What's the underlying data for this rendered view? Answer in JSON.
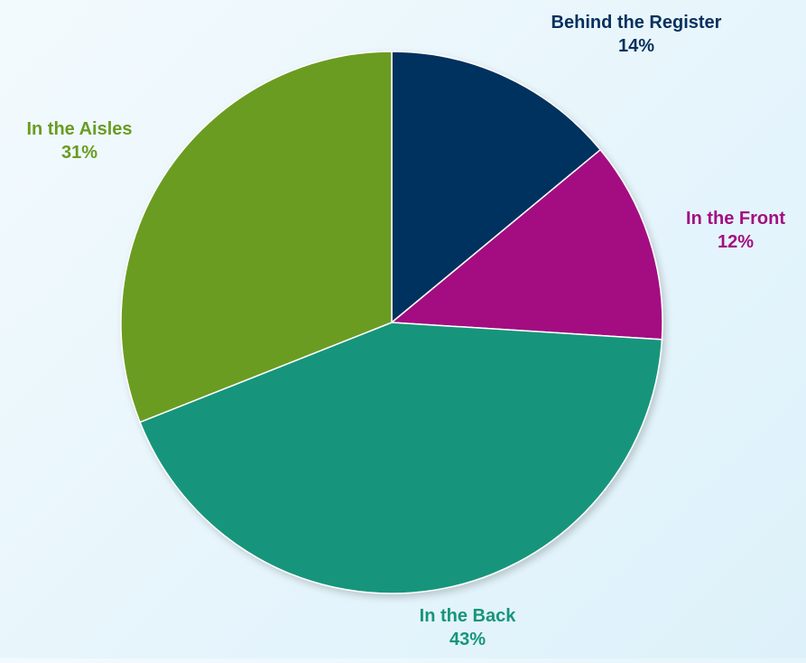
{
  "chart_data": {
    "type": "pie",
    "title": "",
    "slices": [
      {
        "label": "Behind the Register",
        "value": 14,
        "value_text": "14%",
        "color": "#06305e"
      },
      {
        "label": "In the Front",
        "value": 12,
        "value_text": "12%",
        "color": "#a30f81"
      },
      {
        "label": "In the Back",
        "value": 43,
        "value_text": "43%",
        "color": "#16957b"
      },
      {
        "label": "In the Aisles",
        "value": 31,
        "value_text": "31%",
        "color": "#6a9c22"
      }
    ],
    "start_angle": "12 o'clock",
    "direction": "clockwise",
    "legend": "none (labels outside slices)"
  }
}
